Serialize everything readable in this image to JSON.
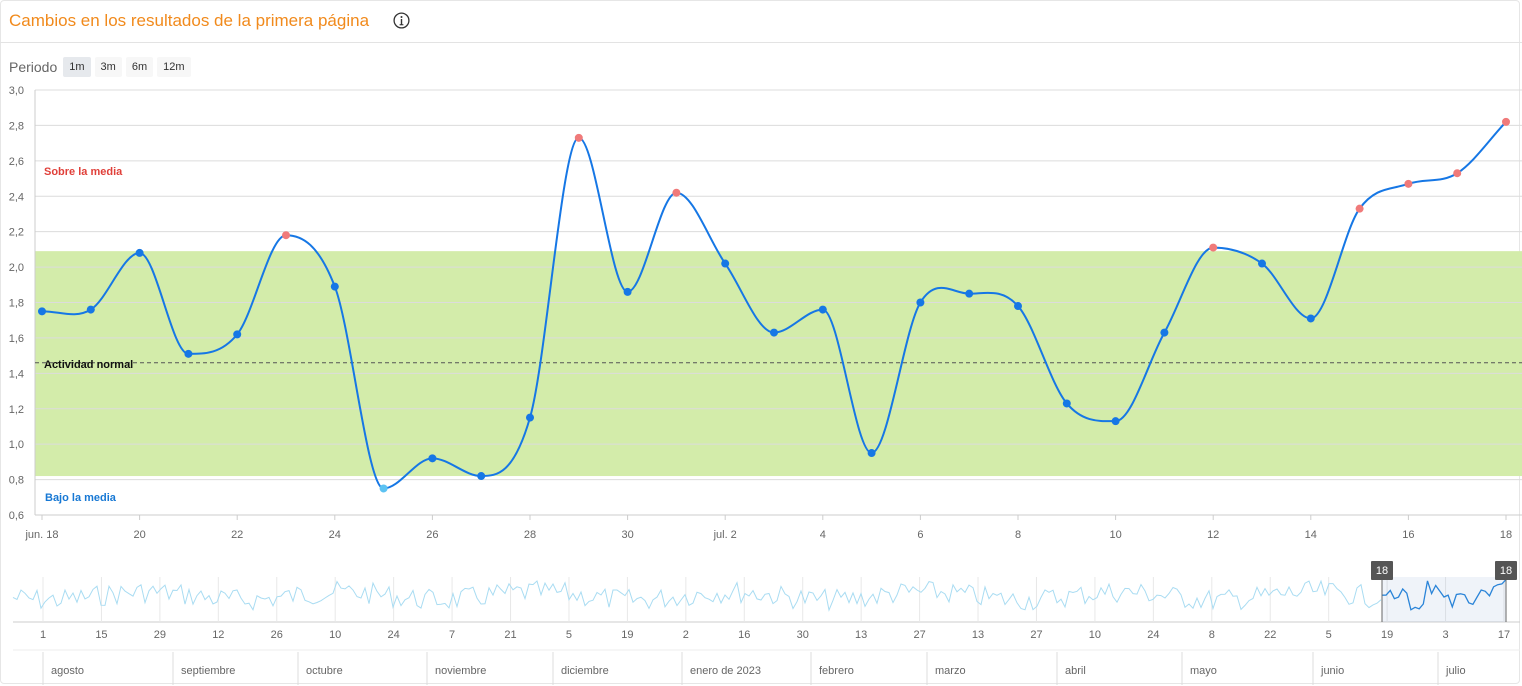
{
  "header": {
    "title": "Cambios en los resultados de la primera página",
    "info_icon": "info-circle-icon"
  },
  "period": {
    "label": "Periodo",
    "options": [
      "1m",
      "3m",
      "6m",
      "12m"
    ],
    "selected": "1m"
  },
  "chart_data": {
    "type": "line",
    "x_tick_labels": [
      "jun. 18",
      "20",
      "22",
      "24",
      "26",
      "28",
      "30",
      "jul. 2",
      "4",
      "6",
      "8",
      "10",
      "12",
      "14",
      "16",
      "18"
    ],
    "ylim": [
      0.6,
      3.0
    ],
    "y_tick_labels": [
      "0,6",
      "0,8",
      "1,0",
      "1,2",
      "1,4",
      "1,6",
      "1,8",
      "2,0",
      "2,2",
      "2,4",
      "2,6",
      "2,8",
      "3,0"
    ],
    "grid": true,
    "series": [
      {
        "values": [
          1.75,
          1.76,
          2.08,
          1.51,
          1.62,
          2.18,
          1.89,
          0.75,
          0.92,
          0.82,
          1.15,
          2.73,
          1.86,
          2.42,
          2.02,
          1.63,
          1.76,
          0.95,
          1.8,
          1.85,
          1.78,
          1.23,
          1.13,
          1.63,
          2.11,
          2.02,
          1.71,
          2.33,
          2.47,
          2.53,
          2.82
        ],
        "point_colors": [
          "normal",
          "normal",
          "normal",
          "normal",
          "normal",
          "above",
          "normal",
          "below",
          "normal",
          "normal",
          "normal",
          "above",
          "normal",
          "above",
          "normal",
          "normal",
          "normal",
          "normal",
          "normal",
          "normal",
          "normal",
          "normal",
          "normal",
          "normal",
          "above",
          "normal",
          "normal",
          "above",
          "above",
          "above",
          "above"
        ]
      }
    ],
    "bands": [
      {
        "label": "Sobre la media",
        "color": "#e0403a"
      },
      {
        "label": "Actividad normal",
        "from": 0.82,
        "to": 2.09,
        "mean": 1.46,
        "fill": "#d3ecaa",
        "color": "#111111"
      },
      {
        "label": "Bajo la media",
        "color": "#1778d4"
      }
    ],
    "colors": {
      "line": "#1677e5",
      "normal": "#1677e5",
      "above": "#f07a7a",
      "below": "#5cc2f2"
    }
  },
  "navigator": {
    "day_ticks": [
      "1",
      "15",
      "29",
      "12",
      "26",
      "10",
      "24",
      "7",
      "21",
      "5",
      "19",
      "2",
      "16",
      "30",
      "13",
      "27",
      "13",
      "27",
      "10",
      "24",
      "8",
      "22",
      "5",
      "19",
      "3",
      "17"
    ],
    "months": [
      "agosto",
      "septiembre",
      "octubre",
      "noviembre",
      "diciembre",
      "enero de 2023",
      "febrero",
      "marzo",
      "abril",
      "mayo",
      "junio",
      "julio"
    ],
    "handle_left_label": "18",
    "handle_right_label": "18"
  }
}
